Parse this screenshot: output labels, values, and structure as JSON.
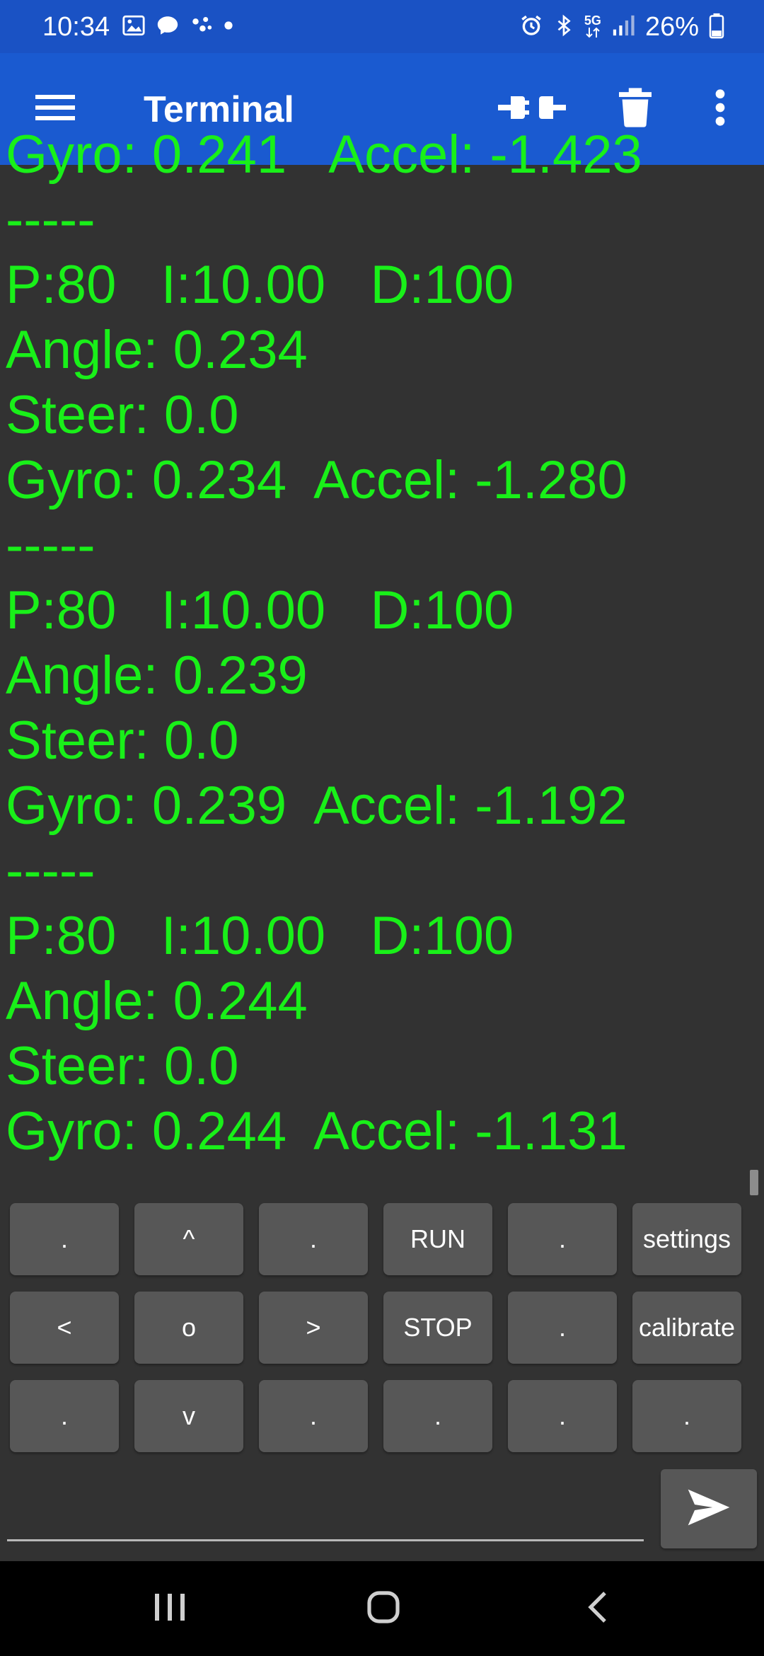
{
  "status_bar": {
    "time": "10:34",
    "network": "5G",
    "battery": "26%"
  },
  "app_bar": {
    "title": "Terminal"
  },
  "terminal": {
    "lines": [
      "Gyro: 0.241   Accel: -1.423",
      "-----",
      "P:80   I:10.00   D:100",
      "Angle: 0.234",
      "Steer: 0.0",
      "Gyro: 0.234  Accel: -1.280",
      "-----",
      "P:80   I:10.00   D:100",
      "Angle: 0.239",
      "Steer: 0.0",
      "Gyro: 0.239  Accel: -1.192",
      "-----",
      "P:80   I:10.00   D:100",
      "Angle: 0.244",
      "Steer: 0.0",
      "Gyro: 0.244  Accel: -1.131"
    ],
    "text_color": "#19f019",
    "background": "#323232"
  },
  "keypad": {
    "keys": [
      ".",
      "^",
      ".",
      "RUN",
      ".",
      "settings",
      "<",
      "o",
      ">",
      "STOP",
      ".",
      "calibrate",
      ".",
      "v",
      ".",
      ".",
      ".",
      "."
    ]
  },
  "input": {
    "value": "",
    "placeholder": ""
  },
  "icons": {
    "menu": "hamburger-menu-icon",
    "connect": "plug-connector-icon",
    "delete": "trash-icon",
    "more": "more-vertical-icon",
    "send": "send-icon",
    "nav_recents": "recents-icon",
    "nav_home": "home-icon",
    "nav_back": "back-icon"
  },
  "colors": {
    "status_bar": "#1a52c4",
    "app_bar": "#1a5ad0",
    "key_background": "#575757"
  }
}
